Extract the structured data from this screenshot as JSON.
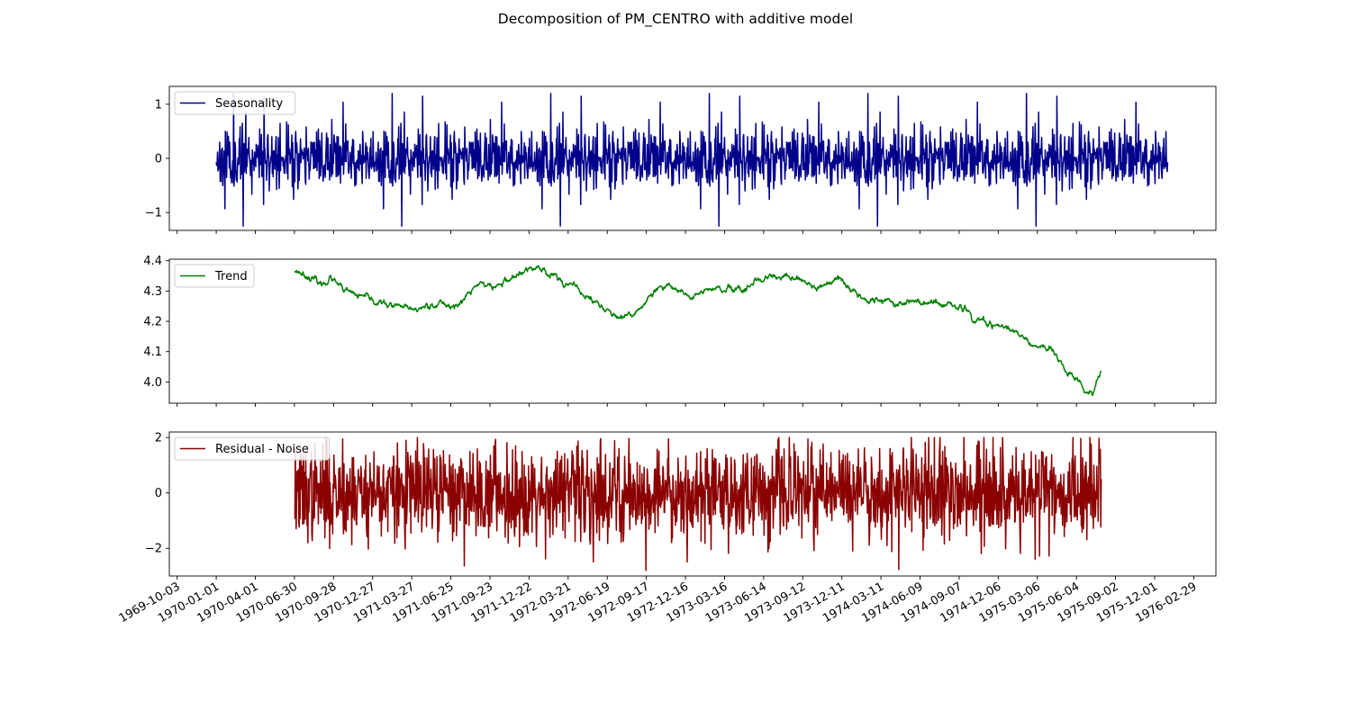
{
  "figure": {
    "title": "Decomposition of PM_CENTRO with additive model"
  },
  "chart_data": [
    {
      "type": "line",
      "panel": "seasonality",
      "series": [
        {
          "name": "Seasonality",
          "color": "#00008b",
          "x_start": "1970-01-01",
          "x_end": "1975-12-31",
          "seed": 11,
          "period_days": 365,
          "values": []
        }
      ],
      "legend": "top-left",
      "ylim": [
        -1.33,
        1.33
      ],
      "yticks": [
        {
          "value": 1,
          "label": "1"
        },
        {
          "value": 0,
          "label": "0"
        },
        {
          "value": -1,
          "label": "−1"
        }
      ],
      "xlim": [
        "1969-09-15",
        "1976-04-20"
      ],
      "xlabel": "",
      "ylabel": "",
      "grid": false
    },
    {
      "type": "line",
      "panel": "trend",
      "series": [
        {
          "name": "Trend",
          "color": "#008000",
          "x_start": "1970-07-01",
          "x_end": "1975-07-31",
          "seed": 23,
          "anchors": [
            [
              "1970-07-01",
              4.37
            ],
            [
              "1970-08-01",
              4.35
            ],
            [
              "1970-09-01",
              4.32
            ],
            [
              "1970-09-20",
              4.345
            ],
            [
              "1970-10-20",
              4.3
            ],
            [
              "1971-01-01",
              4.265
            ],
            [
              "1971-04-01",
              4.235
            ],
            [
              "1971-05-15",
              4.26
            ],
            [
              "1971-07-10",
              4.25
            ],
            [
              "1971-09-01",
              4.33
            ],
            [
              "1971-10-01",
              4.31
            ],
            [
              "1971-11-15",
              4.345
            ],
            [
              "1972-01-10",
              4.38
            ],
            [
              "1972-02-15",
              4.355
            ],
            [
              "1972-04-15",
              4.3
            ],
            [
              "1972-06-15",
              4.24
            ],
            [
              "1972-07-25",
              4.2
            ],
            [
              "1972-08-20",
              4.225
            ],
            [
              "1972-10-10",
              4.3
            ],
            [
              "1972-11-20",
              4.315
            ],
            [
              "1973-01-01",
              4.28
            ],
            [
              "1973-02-10",
              4.305
            ],
            [
              "1973-05-01",
              4.3
            ],
            [
              "1973-07-01",
              4.345
            ],
            [
              "1973-09-01",
              4.34
            ],
            [
              "1973-10-15",
              4.31
            ],
            [
              "1973-12-01",
              4.335
            ],
            [
              "1974-02-01",
              4.28
            ],
            [
              "1974-04-01",
              4.265
            ],
            [
              "1974-07-10",
              4.26
            ],
            [
              "1974-09-20",
              4.24
            ],
            [
              "1974-10-10",
              4.205
            ],
            [
              "1974-12-15",
              4.18
            ],
            [
              "1975-02-10",
              4.14
            ],
            [
              "1975-03-15",
              4.115
            ],
            [
              "1975-04-10",
              4.1
            ],
            [
              "1975-05-10",
              4.04
            ],
            [
              "1975-06-10",
              4.0
            ],
            [
              "1975-06-30",
              3.965
            ],
            [
              "1975-07-15",
              3.985
            ],
            [
              "1975-07-31",
              4.035
            ]
          ]
        }
      ],
      "legend": "top-left",
      "ylim": [
        3.93,
        4.405
      ],
      "yticks": [
        {
          "value": 4.4,
          "label": "4.4"
        },
        {
          "value": 4.3,
          "label": "4.3"
        },
        {
          "value": 4.2,
          "label": "4.2"
        },
        {
          "value": 4.1,
          "label": "4.1"
        },
        {
          "value": 4.0,
          "label": "4.0"
        }
      ],
      "xlim": [
        "1969-09-15",
        "1976-04-20"
      ],
      "xlabel": "",
      "ylabel": "",
      "grid": false
    },
    {
      "type": "line",
      "panel": "residual",
      "series": [
        {
          "name": "Residual - Noise",
          "color": "#8b0000",
          "x_start": "1970-07-01",
          "x_end": "1975-07-31",
          "seed": 37,
          "amplitude": 0.85,
          "min": -2.8,
          "max": 2.0
        }
      ],
      "legend": "top-left",
      "ylim": [
        -3.0,
        2.2
      ],
      "yticks": [
        {
          "value": 2,
          "label": "2"
        },
        {
          "value": 0,
          "label": "0"
        },
        {
          "value": -2,
          "label": "−2"
        }
      ],
      "xlim": [
        "1969-09-15",
        "1976-04-20"
      ],
      "xlabel": "",
      "ylabel": "",
      "grid": false,
      "xticks": [
        "1969-10-03",
        "1970-01-01",
        "1970-04-01",
        "1970-06-30",
        "1970-09-28",
        "1970-12-27",
        "1971-03-27",
        "1971-06-25",
        "1971-09-23",
        "1971-12-22",
        "1972-03-21",
        "1972-06-19",
        "1972-09-17",
        "1972-12-16",
        "1973-03-16",
        "1973-06-14",
        "1973-09-12",
        "1973-12-11",
        "1974-03-11",
        "1974-06-09",
        "1974-09-07",
        "1974-12-06",
        "1975-03-06",
        "1975-06-04",
        "1975-09-02",
        "1975-12-01",
        "1976-02-29"
      ]
    }
  ]
}
